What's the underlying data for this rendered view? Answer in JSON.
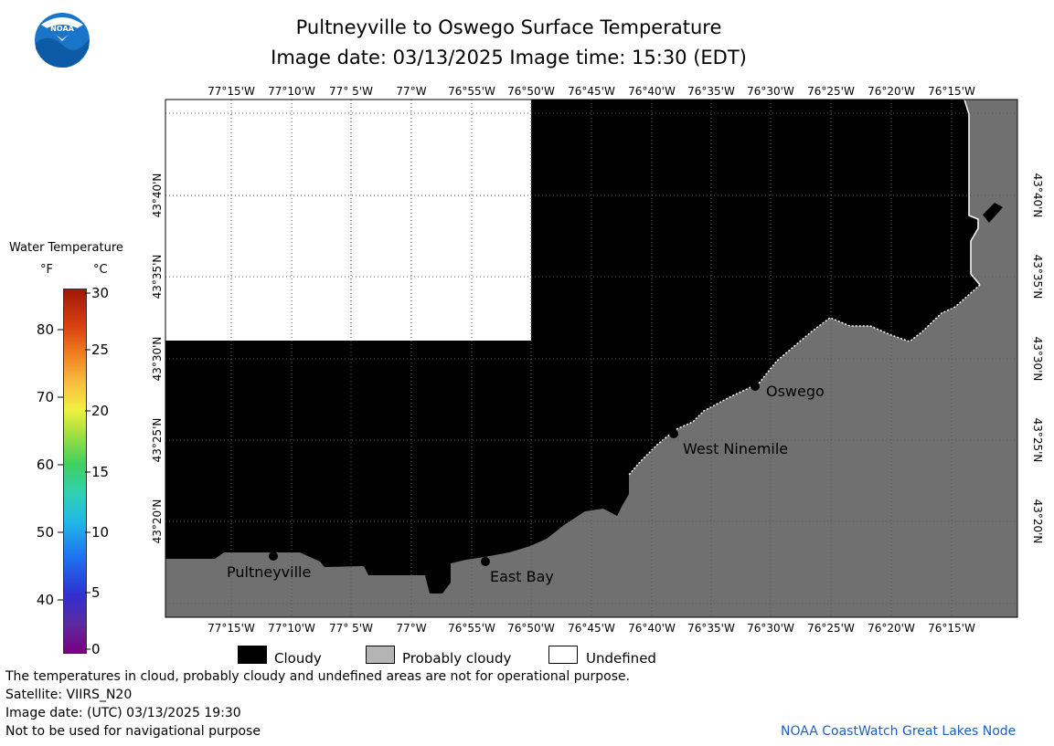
{
  "title": {
    "line1": "Pultneyville to Oswego Surface Temperature",
    "line2": "Image date: 03/13/2025     Image time: 15:30 (EDT)"
  },
  "logo": {
    "text": "NOAA",
    "icon": "noaa-logo-icon"
  },
  "colorbar": {
    "title": "Water Temperature",
    "unit_f": "°F",
    "unit_c": "°C",
    "f_ticks": [
      "80",
      "70",
      "60",
      "50",
      "40"
    ],
    "c_ticks": [
      "30",
      "25",
      "20",
      "15",
      "10",
      "5",
      "0"
    ]
  },
  "map": {
    "lon_labels": [
      "77°15'W",
      "77°10'W",
      "77° 5'W",
      "77°W",
      "76°55'W",
      "76°50'W",
      "76°45'W",
      "76°40'W",
      "76°35'W",
      "76°30'W",
      "76°25'W",
      "76°20'W",
      "76°15'W"
    ],
    "lat_labels": [
      "43°40'N",
      "43°35'N",
      "43°30'N",
      "43°25'N",
      "43°20'N"
    ],
    "places": [
      {
        "name": "Oswego"
      },
      {
        "name": "West Ninemile"
      },
      {
        "name": "Pultneyville"
      },
      {
        "name": "East Bay"
      }
    ],
    "colors": {
      "cloudy": "#000000",
      "probably_cloudy": "#707070",
      "undefined": "#ffffff"
    }
  },
  "legend": {
    "cloudy": "Cloudy",
    "probably_cloudy": "Probably cloudy",
    "undefined": "Undefined"
  },
  "footer": {
    "line1": "The temperatures in cloud, probably cloudy and undefined areas are not for operational purpose.",
    "line2": "Satellite: VIIRS_N20",
    "line3": "Image date: (UTC) 03/13/2025  19:30",
    "line4": "Not to be used for navigational purpose",
    "credit": "NOAA CoastWatch Great Lakes Node"
  }
}
